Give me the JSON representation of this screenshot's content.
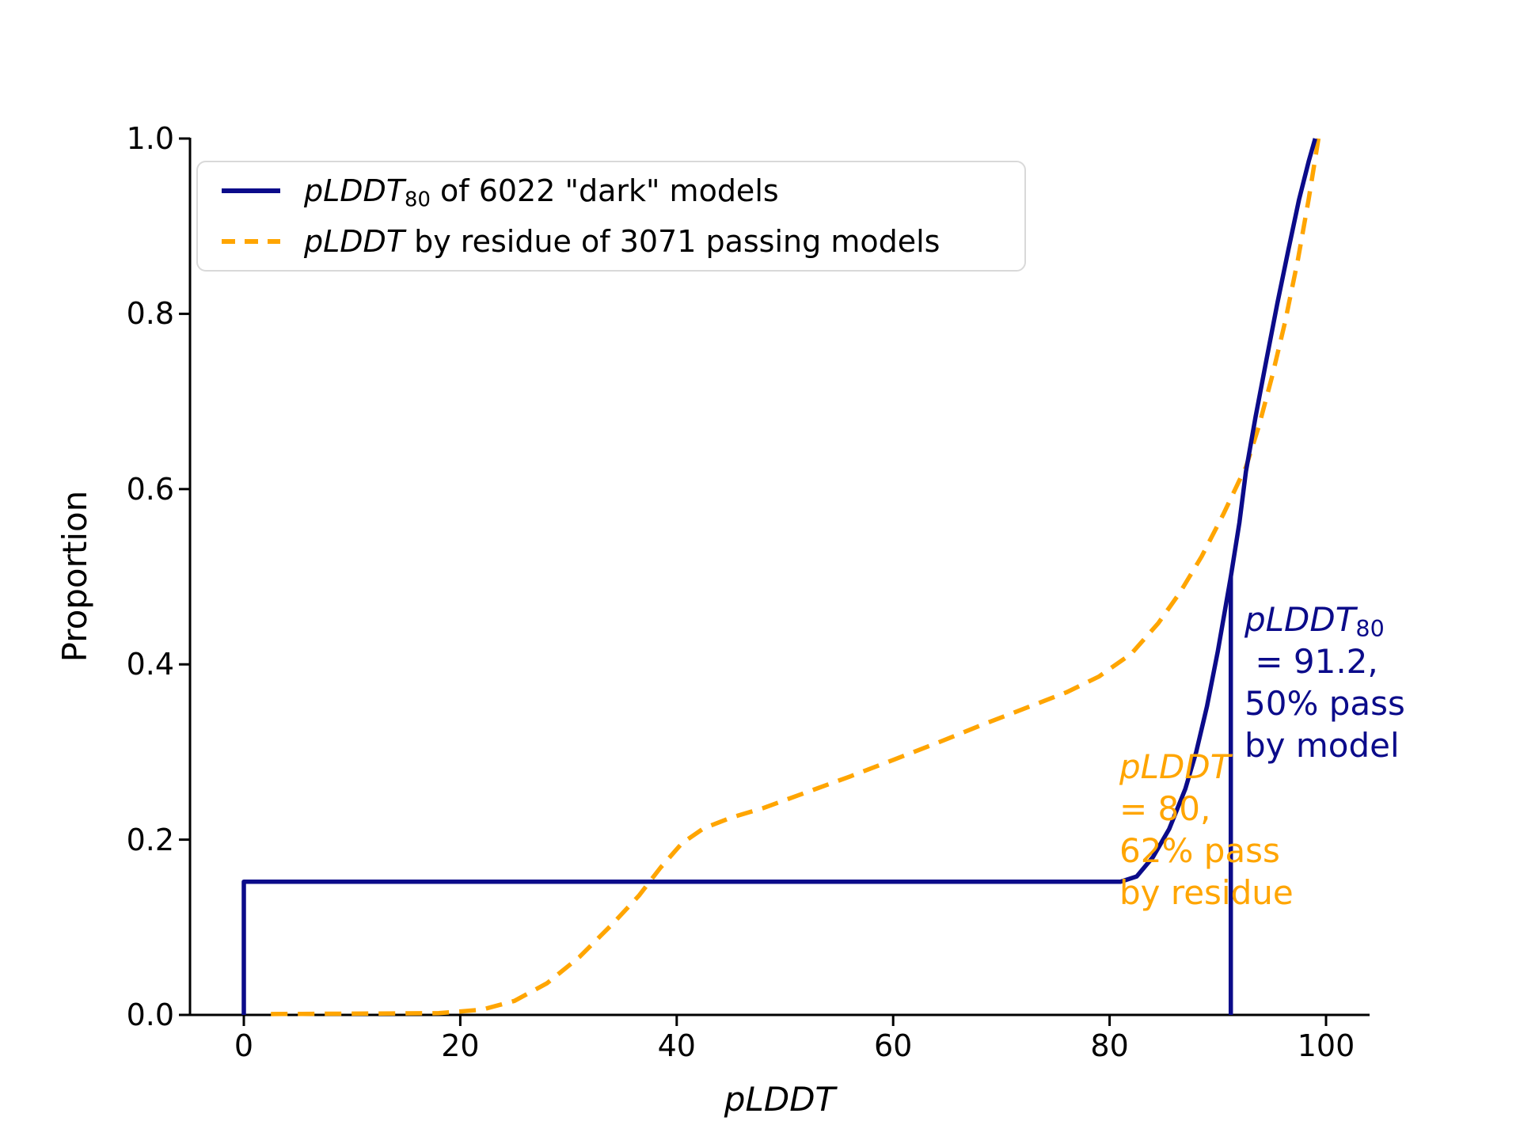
{
  "figure": {
    "xlabel": "pLDDT",
    "ylabel": "Proportion",
    "x_tick_labels": [
      "0",
      "20",
      "40",
      "60",
      "80",
      "100"
    ],
    "y_tick_labels": [
      "0.0",
      "0.2",
      "0.4",
      "0.6",
      "0.8",
      "1.0"
    ],
    "colors": {
      "dark_models": "#0b0b8a",
      "passing_models": "#ffa500",
      "axis": "#000000",
      "legend_border": "#d9d9d9"
    },
    "legend": {
      "items": [
        {
          "math": "pLDDT",
          "sub": "80",
          "rest": " of 6022 \"dark\" models"
        },
        {
          "math": "pLDDT",
          "sub": "",
          "rest": " by residue of 3071 passing models"
        }
      ]
    },
    "annotations": {
      "model": {
        "math": "pLDDT",
        "sub": "80",
        "line2": " = 91.2,",
        "line3": "50% pass",
        "line4": "by model"
      },
      "residue": {
        "math": "pLDDT",
        "line2": "= 80,",
        "line3": "62% pass",
        "line4": "by residue"
      }
    }
  },
  "chart_data": {
    "type": "line",
    "title": "",
    "xlabel": "pLDDT",
    "ylabel": "Proportion",
    "xlim": [
      -5,
      104
    ],
    "ylim": [
      0,
      1.0
    ],
    "x_ticks": [
      0,
      20,
      40,
      60,
      80,
      100
    ],
    "y_ticks": [
      0.0,
      0.2,
      0.4,
      0.6,
      0.8,
      1.0
    ],
    "grid": false,
    "legend_position": "upper left",
    "series": [
      {
        "name": "pLDDT80 of 6022 \"dark\" models (ECDF)",
        "color": "#0b0b8a",
        "style": "solid",
        "points": [
          [
            0,
            0
          ],
          [
            0,
            0.152
          ],
          [
            81,
            0.152
          ],
          [
            82.5,
            0.158
          ],
          [
            84,
            0.18
          ],
          [
            85.5,
            0.212
          ],
          [
            87,
            0.258
          ],
          [
            88,
            0.3
          ],
          [
            89,
            0.352
          ],
          [
            90,
            0.415
          ],
          [
            91.2,
            0.5
          ],
          [
            92,
            0.562
          ],
          [
            92.6,
            0.62
          ],
          [
            93.5,
            0.683
          ],
          [
            94.5,
            0.748
          ],
          [
            95.5,
            0.812
          ],
          [
            96.5,
            0.872
          ],
          [
            97.5,
            0.93
          ],
          [
            98.4,
            0.974
          ],
          [
            99,
            1.0
          ]
        ]
      },
      {
        "name": "pLDDT by residue of 3071 passing models (ECDF)",
        "color": "#ffa500",
        "style": "dashed",
        "points": [
          [
            2.5,
            0.001
          ],
          [
            18,
            0.002
          ],
          [
            22,
            0.006
          ],
          [
            25,
            0.016
          ],
          [
            28,
            0.036
          ],
          [
            31,
            0.066
          ],
          [
            34,
            0.103
          ],
          [
            36.5,
            0.136
          ],
          [
            38.5,
            0.168
          ],
          [
            40.5,
            0.196
          ],
          [
            42.5,
            0.213
          ],
          [
            45,
            0.225
          ],
          [
            48,
            0.236
          ],
          [
            52,
            0.254
          ],
          [
            56,
            0.272
          ],
          [
            60,
            0.291
          ],
          [
            64,
            0.31
          ],
          [
            68,
            0.33
          ],
          [
            72,
            0.349
          ],
          [
            76,
            0.368
          ],
          [
            79,
            0.386
          ],
          [
            82,
            0.412
          ],
          [
            84.5,
            0.447
          ],
          [
            86.5,
            0.482
          ],
          [
            88.5,
            0.523
          ],
          [
            90.5,
            0.571
          ],
          [
            92,
            0.61
          ],
          [
            92.6,
            0.625
          ],
          [
            93.8,
            0.672
          ],
          [
            95,
            0.728
          ],
          [
            96.2,
            0.79
          ],
          [
            97.4,
            0.862
          ],
          [
            98.4,
            0.931
          ],
          [
            99.3,
            1.0
          ]
        ]
      }
    ],
    "reference_lines": [
      {
        "name": "pLDDT80 median marker",
        "x": 91.2,
        "y_from": 0,
        "y_to": 0.5,
        "color": "#0b0b8a",
        "style": "solid"
      }
    ],
    "annotations": [
      {
        "text": "pLDDT80 = 91.2, 50% pass by model",
        "x": 91.2,
        "y": 0.5,
        "color": "#0b0b8a"
      },
      {
        "text": "pLDDT = 80, 62% pass by residue",
        "x": 80,
        "y": 0.38,
        "color": "#ffa500"
      }
    ]
  }
}
